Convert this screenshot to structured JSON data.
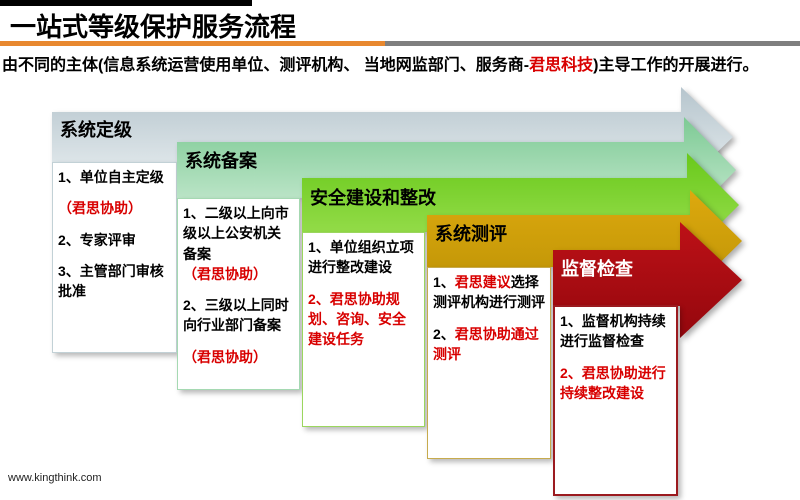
{
  "header": {
    "title": "一站式等级保护服务流程",
    "subtitle": [
      {
        "t": "由不同的主体(信息系统运营使用单位、测评机构、 当地网监部门、服务商-"
      },
      {
        "t": "君思科技",
        "red": true
      },
      {
        "t": ")主导工作的开展进行。"
      }
    ]
  },
  "footer": {
    "url": "www.kingthink.com"
  },
  "colors": {
    "accent_orange": "#e8882f",
    "accent_gray": "#7f7f7f",
    "top_bar_black": "#000000",
    "text_red": "#d80000"
  },
  "stages": [
    {
      "title": "系统定级",
      "items": [
        [
          {
            "t": "1、单位自主定级"
          }
        ],
        [
          {
            "t": "（君思协助）",
            "red": true
          }
        ],
        [
          {
            "t": "2、专家评审"
          }
        ],
        [
          {
            "t": "3、主管部门审核批准"
          }
        ]
      ],
      "colors": {
        "band_top": "#b6c5cd",
        "band_bottom": "#e9eff1",
        "box_border": "#c2d1d6",
        "title_color": "#000000"
      }
    },
    {
      "title": "系统备案",
      "items": [
        [
          {
            "t": "1、二级以上向市级以上公安机关备案"
          },
          {
            "t": "（君思协助）",
            "red": true
          }
        ],
        [
          {
            "t": "2、三级以上同时向行业部门备案"
          }
        ],
        [
          {
            "t": "（君思协助）",
            "red": true
          }
        ]
      ],
      "colors": {
        "band_top": "#7dca94",
        "band_bottom": "#cdecd6",
        "box_border": "#a5d9b2",
        "title_color": "#000000"
      }
    },
    {
      "title": "安全建设和整改",
      "items": [
        [
          {
            "t": "1、单位组织立项进行整改建设"
          }
        ],
        [
          {
            "t": "2、君思协助规划、咨询、安全建设任务",
            "red": true
          }
        ]
      ],
      "colors": {
        "band_top": "#69c91b",
        "band_bottom": "#a0e156",
        "box_border": "#9bd65e",
        "title_color": "#000000"
      }
    },
    {
      "title": "系统测评",
      "items": [
        [
          {
            "t": "1、"
          },
          {
            "t": "君思建议",
            "red": true
          },
          {
            "t": "选择测评机构进行测评"
          }
        ],
        [
          {
            "t": "2、"
          },
          {
            "t": "君思协助通过测评",
            "red": true
          }
        ]
      ],
      "colors": {
        "band_top": "#dda90e",
        "band_bottom": "#bd9306",
        "box_border": "#c7ab4d",
        "title_color": "#000000"
      }
    },
    {
      "title": "监督检查",
      "items": [
        [
          {
            "t": "1、监督机构持续进行监督检查"
          }
        ],
        [
          {
            "t": "2、君思协助进行持续整改建设",
            "red": true
          }
        ]
      ],
      "colors": {
        "band_top": "#bd1117",
        "band_bottom": "#94070d",
        "box_border": "#9b1a1f",
        "title_color": "#ffffff"
      }
    }
  ]
}
